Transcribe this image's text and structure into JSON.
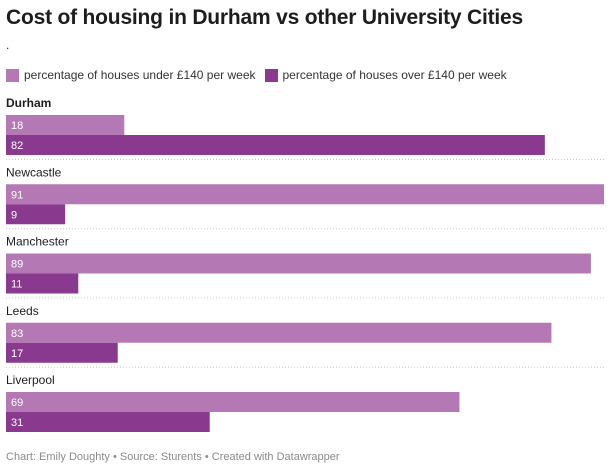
{
  "chart_data": {
    "type": "bar",
    "orientation": "horizontal",
    "title": "Cost of housing in Durham vs other University Cities",
    "subtitle": ".",
    "categories": [
      "Durham",
      "Newcastle",
      "Manchester",
      "Leeds",
      "Liverpool"
    ],
    "highlighted_category": "Durham",
    "series": [
      {
        "name": "percentage of houses under £140 per week",
        "color": "#b478b4",
        "values": [
          18,
          91,
          89,
          83,
          69
        ]
      },
      {
        "name": "percentage of houses over £140 per week",
        "color": "#893a8e",
        "values": [
          82,
          9,
          11,
          17,
          31
        ]
      }
    ],
    "xlim": [
      0,
      91
    ],
    "value_labels": true,
    "legend_position": "top-left",
    "grid": false
  },
  "footer": {
    "credit": "Chart: Emily Doughty • Source: Sturents • Created with Datawrapper"
  }
}
